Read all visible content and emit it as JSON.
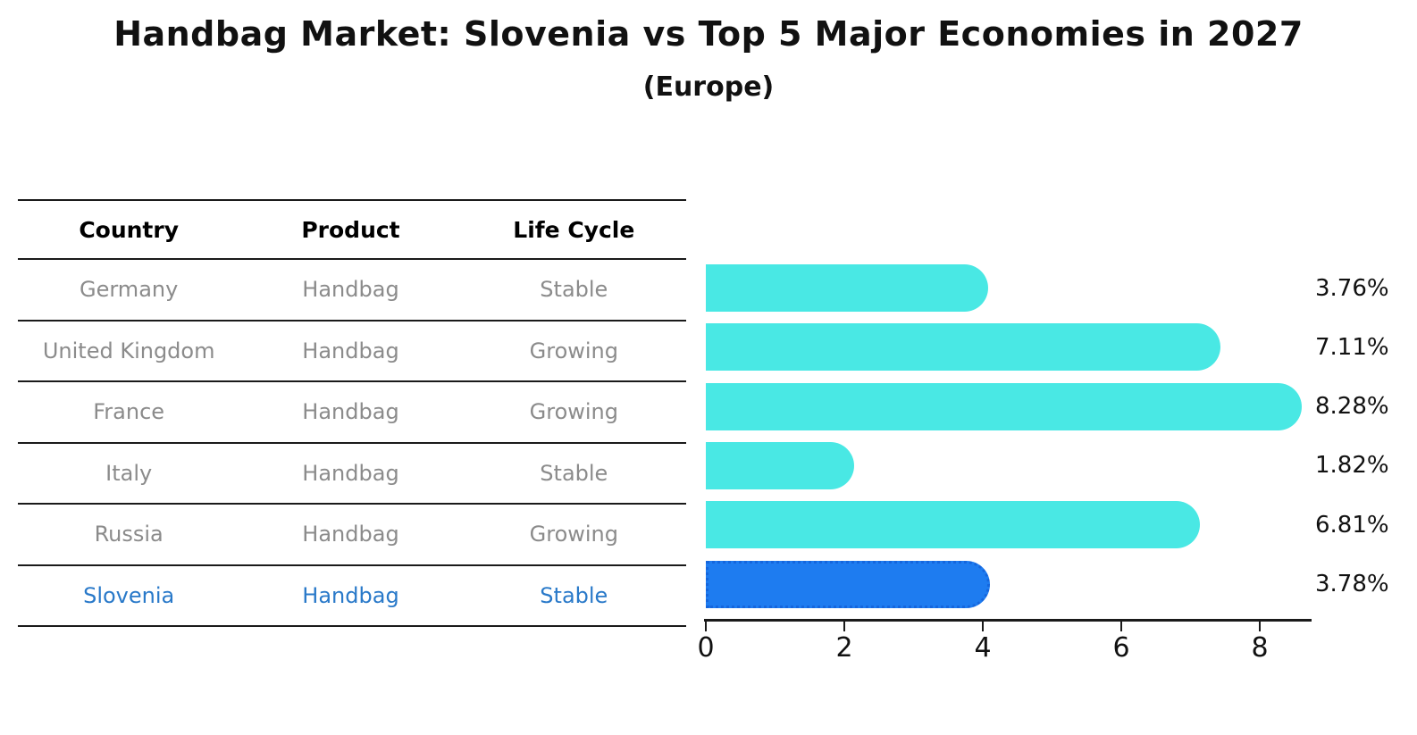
{
  "title": "Handbag Market: Slovenia vs Top 5 Major Economies in 2027",
  "subtitle": "(Europe)",
  "colors": {
    "background": "#ffffff",
    "bar_default": "#49e8e4",
    "bar_highlight": "#1e7cf0",
    "bar_highlight_border": "#1566dd",
    "row_text": "#8b8b8b",
    "highlight_text": "#2979c9",
    "header_text": "#000000",
    "axis": "#1a1a1a"
  },
  "table": {
    "headers": [
      "Country",
      "Product",
      "Life Cycle"
    ],
    "rows": [
      {
        "country": "Germany",
        "product": "Handbag",
        "life_cycle": "Stable",
        "highlight": false
      },
      {
        "country": "United Kingdom",
        "product": "Handbag",
        "life_cycle": "Growing",
        "highlight": false
      },
      {
        "country": "France",
        "product": "Handbag",
        "life_cycle": "Growing",
        "highlight": false
      },
      {
        "country": "Italy",
        "product": "Handbag",
        "life_cycle": "Stable",
        "highlight": false
      },
      {
        "country": "Russia",
        "product": "Handbag",
        "life_cycle": "Growing",
        "highlight": false
      },
      {
        "country": "Slovenia",
        "product": "Handbag",
        "life_cycle": "Stable",
        "highlight": true
      }
    ]
  },
  "chart_data": {
    "type": "bar",
    "orientation": "horizontal",
    "title": "Handbag Market: Slovenia vs Top 5 Major Economies in 2027",
    "subtitle": "(Europe)",
    "categories": [
      "Germany",
      "United Kingdom",
      "France",
      "Italy",
      "Russia",
      "Slovenia"
    ],
    "values": [
      3.76,
      7.11,
      8.28,
      1.82,
      6.81,
      3.78
    ],
    "value_labels": [
      "3.76%",
      "7.11%",
      "8.28%",
      "1.82%",
      "6.81%",
      "3.78%"
    ],
    "highlight_index": 5,
    "x_ticks": [
      0,
      2,
      4,
      6,
      8
    ],
    "xlim": [
      0,
      8.75
    ],
    "xlabel": "",
    "ylabel": "",
    "grid": false,
    "legend": false
  }
}
